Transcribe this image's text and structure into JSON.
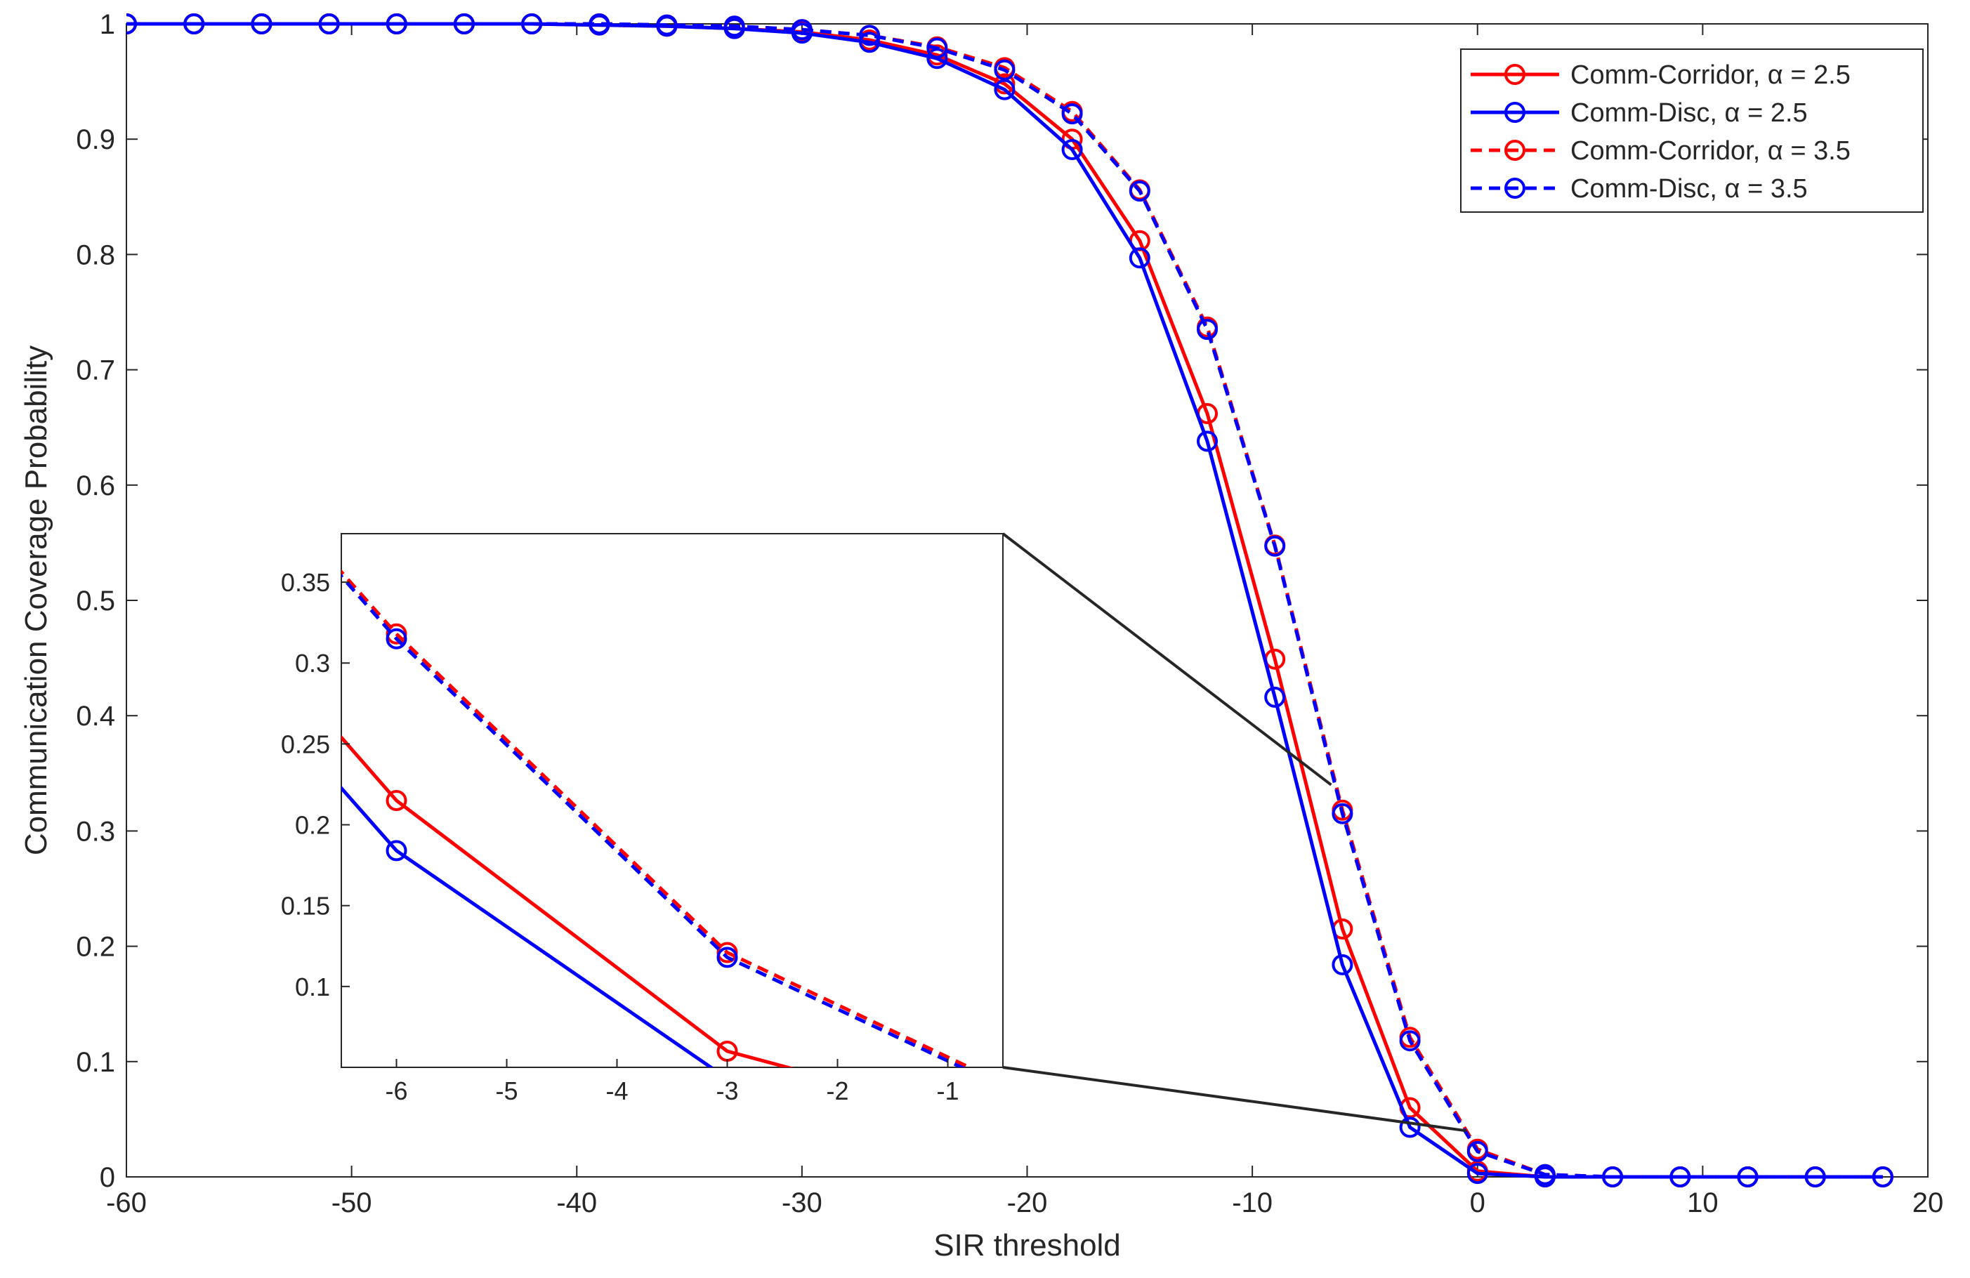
{
  "chart_data": {
    "type": "line",
    "xlabel": "SIR threshold",
    "ylabel": "Communication Coverage Probability",
    "xlim": [
      -60,
      20
    ],
    "ylim": [
      0,
      1
    ],
    "xticks": [
      -60,
      -50,
      -40,
      -30,
      -20,
      -10,
      0,
      10,
      20
    ],
    "yticks": [
      0,
      0.1,
      0.2,
      0.3,
      0.4,
      0.5,
      0.6,
      0.7,
      0.8,
      0.9,
      1
    ],
    "x": [
      -60,
      -57,
      -54,
      -51,
      -48,
      -45,
      -42,
      -39,
      -36,
      -33,
      -30,
      -27,
      -24,
      -21,
      -18,
      -15,
      -12,
      -9,
      -6,
      -3,
      0,
      3,
      6,
      9,
      12,
      15,
      18
    ],
    "series": [
      {
        "name": "Comm-Corridor, α = 2.5",
        "color": "#ff0000",
        "dash": "solid",
        "values": [
          1,
          1,
          1,
          1,
          1,
          1,
          1,
          0.999,
          0.998,
          0.996,
          0.993,
          0.986,
          0.973,
          0.948,
          0.9,
          0.812,
          0.662,
          0.449,
          0.215,
          0.06,
          0.005,
          0,
          0,
          0,
          0,
          0,
          0
        ]
      },
      {
        "name": "Comm-Disc, α = 2.5",
        "color": "#0000ff",
        "dash": "solid",
        "values": [
          1,
          1,
          1,
          1,
          1,
          1,
          1,
          0.999,
          0.998,
          0.996,
          0.992,
          0.984,
          0.97,
          0.943,
          0.891,
          0.797,
          0.638,
          0.416,
          0.184,
          0.043,
          0.003,
          0,
          0,
          0,
          0,
          0,
          0
        ]
      },
      {
        "name": "Comm-Corridor, α = 3.5",
        "color": "#ff0000",
        "dash": "dashed",
        "values": [
          1,
          1,
          1,
          1,
          1,
          1,
          1,
          1,
          0.999,
          0.998,
          0.995,
          0.99,
          0.98,
          0.962,
          0.924,
          0.856,
          0.737,
          0.548,
          0.318,
          0.121,
          0.024,
          0.002,
          0,
          0,
          0,
          0,
          0
        ]
      },
      {
        "name": "Comm-Disc, α = 3.5",
        "color": "#0000ff",
        "dash": "dashed",
        "values": [
          1,
          1,
          1,
          1,
          1,
          1,
          1,
          1,
          0.999,
          0.998,
          0.995,
          0.99,
          0.979,
          0.96,
          0.922,
          0.855,
          0.735,
          0.547,
          0.315,
          0.118,
          0.022,
          0.002,
          0,
          0,
          0,
          0,
          0
        ]
      }
    ],
    "legend_position": "top-right",
    "grid": false,
    "inset": {
      "xlim": [
        -6.5,
        -0.5
      ],
      "ylim": [
        0.05,
        0.38
      ],
      "xticks": [
        -6,
        -5,
        -4,
        -3,
        -2,
        -1
      ],
      "yticks": [
        0.1,
        0.15,
        0.2,
        0.25,
        0.3,
        0.35
      ],
      "ytick_labels": [
        "0.1",
        "0.15",
        "0.2",
        "0.25",
        "0.3",
        "0.35"
      ],
      "zoom_region": {
        "x": [
          -6.5,
          -0.5
        ],
        "y": [
          0.05,
          0.38
        ]
      }
    }
  }
}
